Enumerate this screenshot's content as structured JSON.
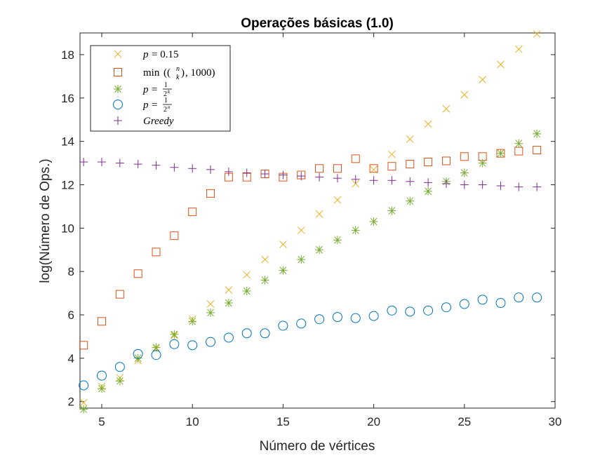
{
  "chart_data": {
    "type": "scatter",
    "title": "Operações básicas (1.0)",
    "xlabel": "Número de vértices",
    "ylabel": "log(Número de Ops.)",
    "xlim": [
      3.8,
      30
    ],
    "ylim": [
      1.7,
      19
    ],
    "xticks": [
      5,
      10,
      15,
      20,
      25,
      30
    ],
    "yticks": [
      2,
      4,
      6,
      8,
      10,
      12,
      14,
      16,
      18
    ],
    "grid": false,
    "legend_position": "top-left",
    "series": [
      {
        "name": "p = 0.15",
        "marker": "x",
        "color": "#EDB120",
        "x": [
          4,
          5,
          6,
          7,
          8,
          9,
          10,
          11,
          12,
          13,
          14,
          15,
          16,
          17,
          18,
          19,
          20,
          21,
          22,
          23,
          24,
          25,
          26,
          27,
          28,
          29
        ],
        "y": [
          1.95,
          2.7,
          3.1,
          3.9,
          4.45,
          5.05,
          5.8,
          6.5,
          7.15,
          7.85,
          8.55,
          9.25,
          9.9,
          10.65,
          11.3,
          12.05,
          12.7,
          13.4,
          14.1,
          14.8,
          15.5,
          16.15,
          16.85,
          17.55,
          18.25,
          18.95
        ]
      },
      {
        "name": "min((n k), 1000)",
        "marker": "square",
        "color": "#D95319",
        "x": [
          4,
          5,
          6,
          7,
          8,
          9,
          10,
          11,
          12,
          13,
          14,
          15,
          16,
          17,
          18,
          19,
          20,
          21,
          22,
          23,
          24,
          25,
          26,
          27,
          28,
          29
        ],
        "y": [
          4.6,
          5.7,
          6.95,
          7.9,
          8.9,
          9.65,
          10.75,
          11.6,
          12.35,
          12.35,
          12.5,
          12.35,
          12.45,
          12.75,
          12.75,
          13.2,
          12.75,
          12.85,
          12.95,
          13.05,
          13.1,
          13.3,
          13.3,
          13.45,
          13.55,
          13.6
        ]
      },
      {
        "name": "p = 1/2^k",
        "marker": "asterisk",
        "color": "#77AC30",
        "x": [
          4,
          5,
          6,
          7,
          8,
          9,
          10,
          11,
          12,
          13,
          14,
          15,
          16,
          17,
          18,
          19,
          20,
          21,
          22,
          23,
          24,
          25,
          26,
          27,
          28,
          29
        ],
        "y": [
          1.65,
          2.6,
          2.95,
          4.0,
          4.5,
          5.1,
          5.7,
          6.1,
          6.55,
          7.1,
          7.6,
          8.05,
          8.55,
          9.0,
          9.45,
          9.9,
          10.3,
          10.8,
          11.25,
          11.7,
          12.15,
          12.55,
          13.0,
          13.45,
          13.9,
          14.35
        ]
      },
      {
        "name": "p = 1/2^n",
        "marker": "circle",
        "color": "#0072BD",
        "x": [
          4,
          5,
          6,
          7,
          8,
          9,
          10,
          11,
          12,
          13,
          14,
          15,
          16,
          17,
          18,
          19,
          20,
          21,
          22,
          23,
          24,
          25,
          26,
          27,
          28,
          29
        ],
        "y": [
          2.75,
          3.2,
          3.6,
          4.2,
          4.15,
          4.65,
          4.6,
          4.75,
          4.95,
          5.15,
          5.15,
          5.5,
          5.6,
          5.8,
          5.9,
          5.85,
          5.95,
          6.2,
          6.15,
          6.2,
          6.35,
          6.5,
          6.7,
          6.55,
          6.8,
          6.8
        ]
      },
      {
        "name": "Greedy",
        "marker": "plus",
        "color": "#7E2F8E",
        "x": [
          4,
          5,
          6,
          7,
          8,
          9,
          10,
          11,
          12,
          13,
          14,
          15,
          16,
          17,
          18,
          19,
          20,
          21,
          22,
          23,
          24,
          25,
          26,
          27,
          28,
          29
        ],
        "y": [
          13.05,
          13.05,
          13.0,
          12.95,
          12.9,
          12.8,
          12.75,
          12.7,
          12.6,
          12.55,
          12.5,
          12.45,
          12.4,
          12.35,
          12.3,
          12.25,
          12.2,
          12.2,
          12.15,
          12.1,
          12.05,
          12.0,
          12.0,
          11.95,
          11.9,
          11.9
        ]
      }
    ],
    "legend_labels": {
      "s1_lhs": "p",
      "s1_rhs": "= 0.15",
      "s2_min": "min",
      "s2_n": "n",
      "s2_k": "k",
      "s2_tail": ", 1000)",
      "s3_lhs": "p",
      "s3_eq": "=",
      "s3_num": "1",
      "s3_den": "2",
      "s3_exp": "k",
      "s4_lhs": "p",
      "s4_eq": "=",
      "s4_num": "1",
      "s4_den": "2",
      "s4_exp": "n",
      "s5": "Greedy"
    }
  }
}
